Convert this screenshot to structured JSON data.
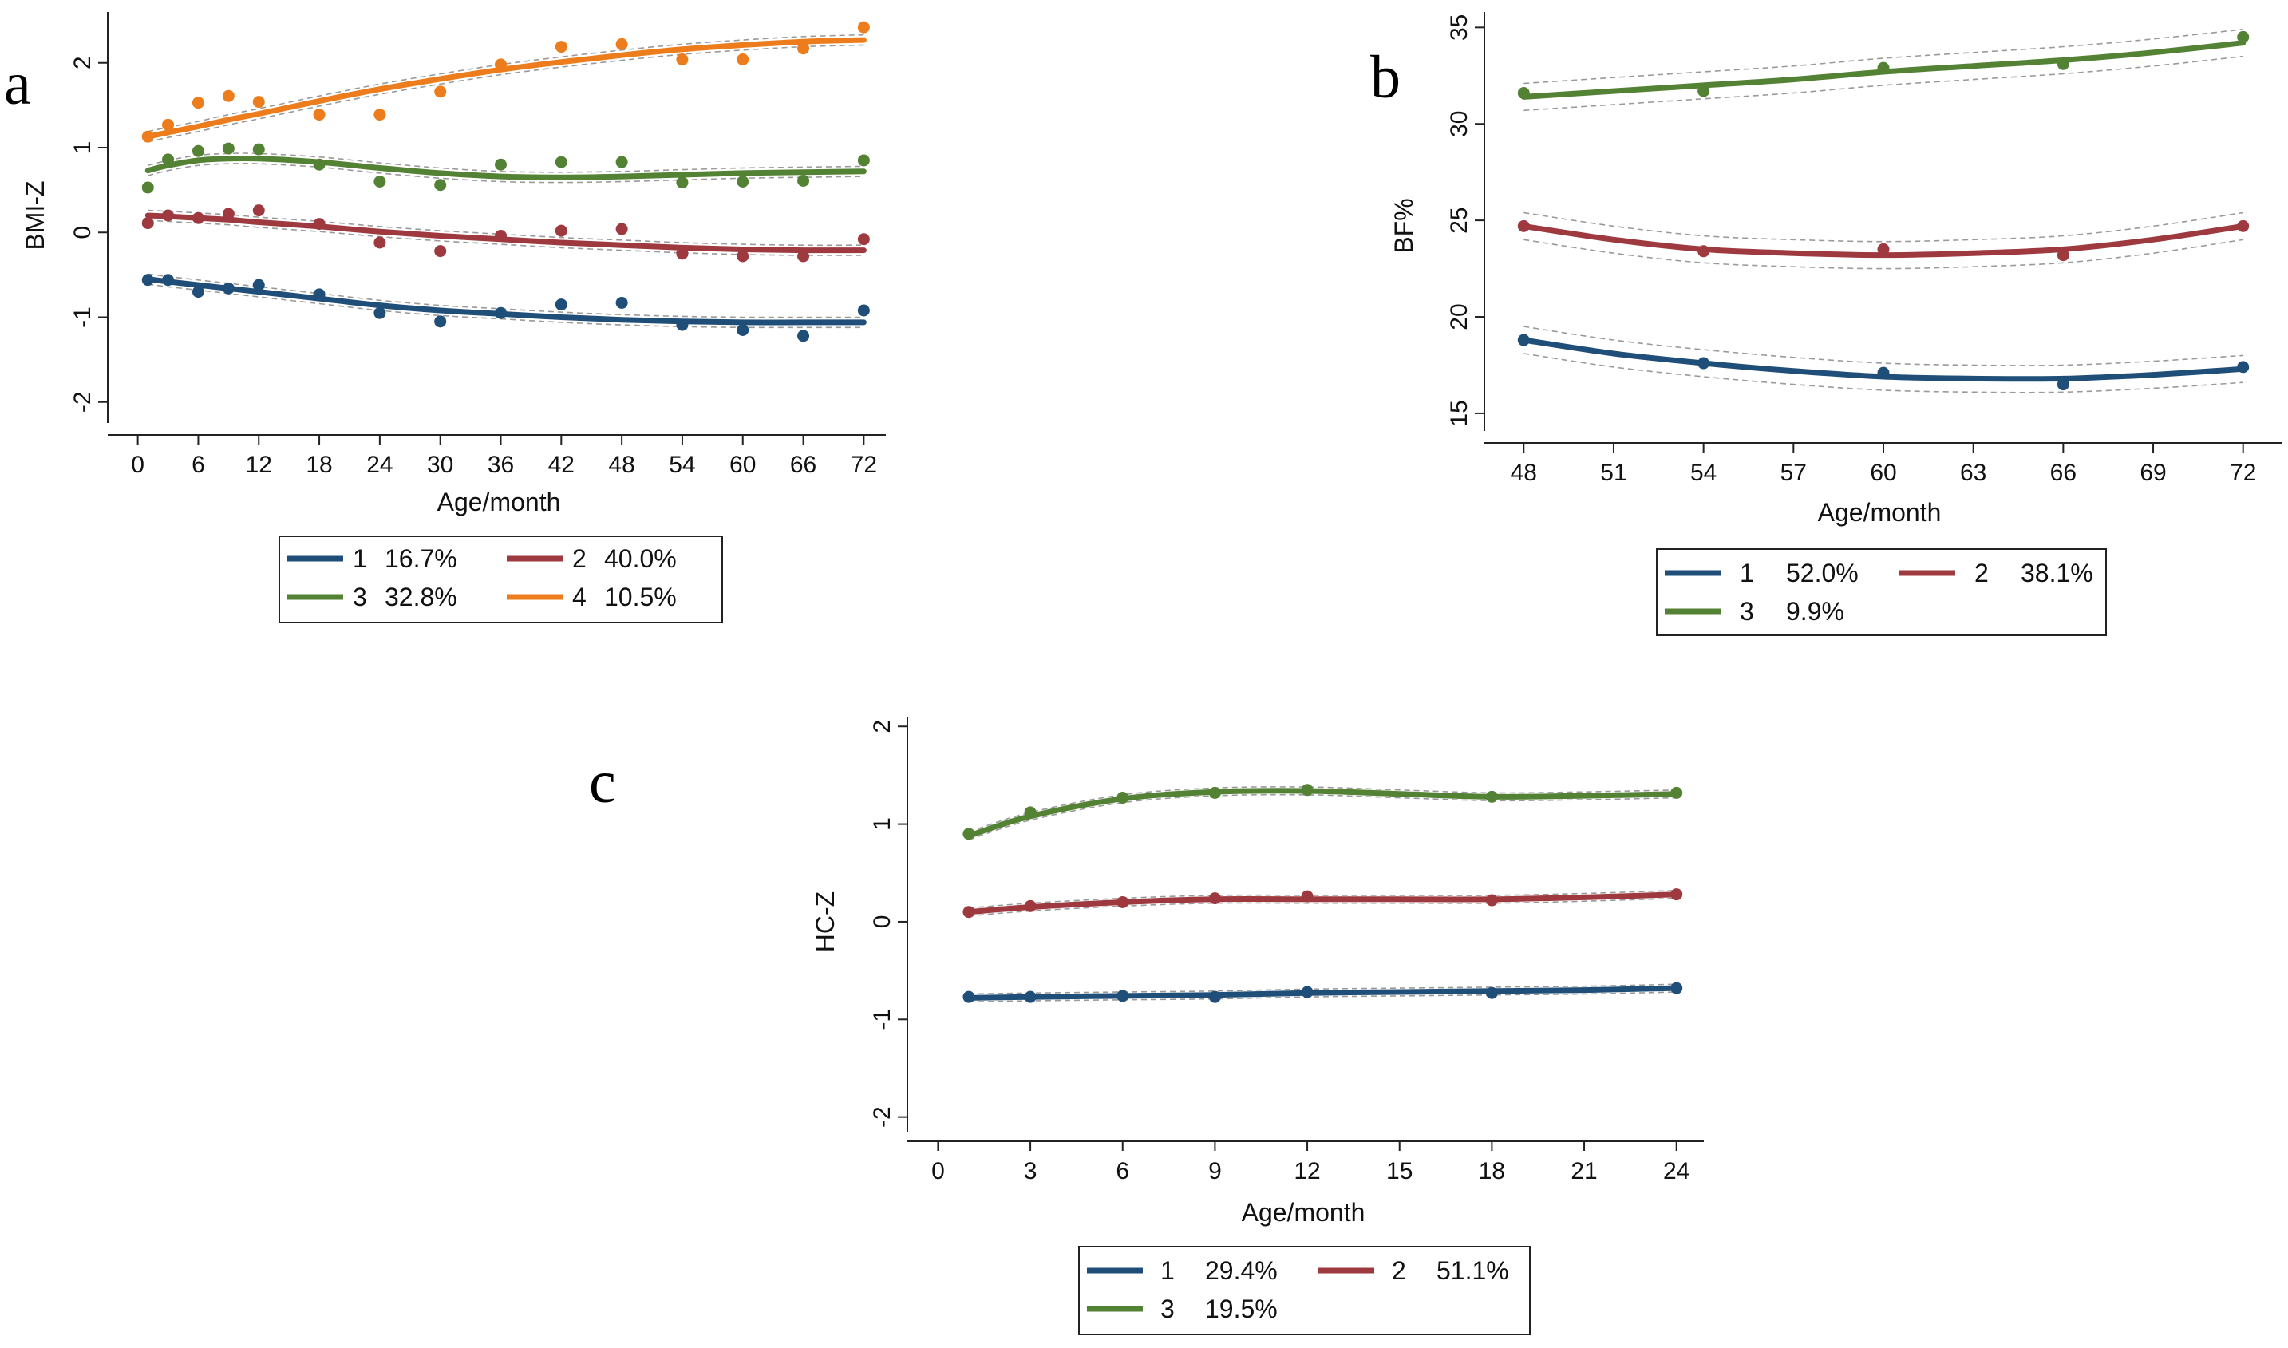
{
  "chart_data": [
    {
      "panel": "a",
      "type": "line",
      "xlabel": "Age/month",
      "ylabel": "BMI-Z",
      "xlim": [
        -1,
        73
      ],
      "ylim": [
        -2.2,
        2.6
      ],
      "xticks": [
        0,
        6,
        12,
        18,
        24,
        30,
        36,
        42,
        48,
        54,
        60,
        66,
        72
      ],
      "xtick_labels": [
        "0",
        "6",
        "12",
        "18",
        "24",
        "30",
        "36",
        "42",
        "48",
        "54",
        "60",
        "66",
        "72"
      ],
      "yticks": [
        -2,
        -1,
        0,
        1,
        2
      ],
      "ytick_labels": [
        "-2",
        "-1",
        "0",
        "1",
        "2"
      ],
      "grid": false,
      "confidence_band": "dashed gray",
      "legend_position": "bottom",
      "series": [
        {
          "name": "1",
          "pct": "16.7%",
          "color": "#1f4e79",
          "fit_x": [
            1,
            3,
            6,
            9,
            12,
            18,
            24,
            30,
            36,
            42,
            48,
            54,
            60,
            66,
            72
          ],
          "fit_y": [
            -0.55,
            -0.58,
            -0.62,
            -0.66,
            -0.7,
            -0.78,
            -0.86,
            -0.92,
            -0.96,
            -1.0,
            -1.03,
            -1.05,
            -1.06,
            -1.06,
            -1.06
          ],
          "points_x": [
            1,
            3,
            6,
            9,
            12,
            18,
            24,
            30,
            36,
            42,
            48,
            54,
            60,
            66,
            72
          ],
          "points_y": [
            -0.56,
            -0.56,
            -0.7,
            -0.66,
            -0.62,
            -0.73,
            -0.95,
            -1.05,
            -0.95,
            -0.85,
            -0.83,
            -1.09,
            -1.15,
            -1.22,
            -0.92
          ]
        },
        {
          "name": "2",
          "pct": "40.0%",
          "color": "#9e3a3f",
          "fit_x": [
            1,
            3,
            6,
            9,
            12,
            18,
            24,
            30,
            36,
            42,
            48,
            54,
            60,
            66,
            72
          ],
          "fit_y": [
            0.2,
            0.19,
            0.17,
            0.15,
            0.12,
            0.07,
            0.01,
            -0.04,
            -0.08,
            -0.12,
            -0.15,
            -0.18,
            -0.2,
            -0.21,
            -0.21
          ],
          "points_x": [
            1,
            3,
            6,
            9,
            12,
            18,
            24,
            30,
            36,
            42,
            48,
            54,
            60,
            66,
            72
          ],
          "points_y": [
            0.11,
            0.2,
            0.17,
            0.22,
            0.26,
            0.1,
            -0.12,
            -0.22,
            -0.04,
            0.02,
            0.04,
            -0.25,
            -0.28,
            -0.28,
            -0.08
          ]
        },
        {
          "name": "3",
          "pct": "32.8%",
          "color": "#548235",
          "fit_x": [
            1,
            3,
            6,
            9,
            12,
            18,
            24,
            30,
            36,
            42,
            48,
            54,
            60,
            66,
            72
          ],
          "fit_y": [
            0.73,
            0.79,
            0.85,
            0.87,
            0.87,
            0.83,
            0.76,
            0.7,
            0.66,
            0.65,
            0.66,
            0.68,
            0.7,
            0.71,
            0.72
          ],
          "points_x": [
            1,
            3,
            6,
            9,
            12,
            18,
            24,
            30,
            36,
            42,
            48,
            54,
            60,
            66,
            72
          ],
          "points_y": [
            0.53,
            0.86,
            0.96,
            0.99,
            0.98,
            0.8,
            0.6,
            0.56,
            0.8,
            0.83,
            0.83,
            0.59,
            0.6,
            0.61,
            0.85
          ]
        },
        {
          "name": "4",
          "pct": "10.5%",
          "color": "#ed7d1c",
          "fit_x": [
            1,
            3,
            6,
            9,
            12,
            18,
            24,
            30,
            36,
            42,
            48,
            54,
            60,
            66,
            72
          ],
          "fit_y": [
            1.13,
            1.18,
            1.25,
            1.33,
            1.4,
            1.55,
            1.69,
            1.81,
            1.92,
            2.01,
            2.09,
            2.16,
            2.21,
            2.25,
            2.27
          ],
          "points_x": [
            1,
            3,
            6,
            9,
            12,
            18,
            24,
            30,
            36,
            42,
            48,
            54,
            60,
            66,
            72
          ],
          "points_y": [
            1.13,
            1.27,
            1.53,
            1.61,
            1.54,
            1.39,
            1.39,
            1.66,
            1.98,
            2.19,
            2.22,
            2.04,
            2.04,
            2.17,
            2.42
          ]
        }
      ]
    },
    {
      "panel": "b",
      "type": "line",
      "xlabel": "Age/month",
      "ylabel": "BF%",
      "xlim": [
        47.3,
        72.7
      ],
      "ylim": [
        14.5,
        35.8
      ],
      "xticks": [
        48,
        51,
        54,
        57,
        60,
        63,
        66,
        69,
        72
      ],
      "xtick_labels": [
        "48",
        "51",
        "54",
        "57",
        "60",
        "63",
        "66",
        "69",
        "72"
      ],
      "yticks": [
        15,
        20,
        25,
        30,
        35
      ],
      "ytick_labels": [
        "15",
        "20",
        "25",
        "30",
        "35"
      ],
      "grid": false,
      "confidence_band": "dashed gray",
      "legend_position": "bottom",
      "series": [
        {
          "name": "1",
          "pct": "52.0%",
          "color": "#1f4e79",
          "fit_x": [
            48,
            51,
            54,
            57,
            60,
            63,
            66,
            69,
            72
          ],
          "fit_y": [
            18.8,
            18.1,
            17.6,
            17.2,
            16.9,
            16.8,
            16.8,
            17.0,
            17.3
          ],
          "points_x": [
            48,
            54,
            60,
            66,
            72
          ],
          "points_y": [
            18.8,
            17.6,
            17.1,
            16.5,
            17.4
          ]
        },
        {
          "name": "2",
          "pct": "38.1%",
          "color": "#9e3a3f",
          "fit_x": [
            48,
            51,
            54,
            57,
            60,
            63,
            66,
            69,
            72
          ],
          "fit_y": [
            24.7,
            24.0,
            23.5,
            23.3,
            23.2,
            23.3,
            23.5,
            24.0,
            24.7
          ],
          "points_x": [
            48,
            54,
            60,
            66,
            72
          ],
          "points_y": [
            24.7,
            23.4,
            23.5,
            23.2,
            24.7
          ]
        },
        {
          "name": "3",
          "pct": "9.9%",
          "color": "#548235",
          "fit_x": [
            48,
            51,
            54,
            57,
            60,
            63,
            66,
            69,
            72
          ],
          "fit_y": [
            31.4,
            31.7,
            32.0,
            32.3,
            32.7,
            33.0,
            33.3,
            33.7,
            34.2
          ],
          "points_x": [
            48,
            54,
            60,
            66,
            72
          ],
          "points_y": [
            31.6,
            31.7,
            32.9,
            33.1,
            34.5
          ]
        }
      ]
    },
    {
      "panel": "c",
      "type": "line",
      "xlabel": "Age/month",
      "ylabel": "HC-Z",
      "xlim": [
        -0.4,
        24.5
      ],
      "ylim": [
        -2.15,
        2.1
      ],
      "xticks": [
        0,
        3,
        6,
        9,
        12,
        15,
        18,
        21,
        24
      ],
      "xtick_labels": [
        "0",
        "3",
        "6",
        "9",
        "12",
        "15",
        "18",
        "21",
        "24"
      ],
      "yticks": [
        -2,
        -1,
        0,
        1,
        2
      ],
      "ytick_labels": [
        "-2",
        "-1",
        "0",
        "1",
        "2"
      ],
      "grid": false,
      "confidence_band": "dashed gray",
      "legend_position": "bottom",
      "series": [
        {
          "name": "1",
          "pct": "29.4%",
          "color": "#1f4e79",
          "fit_x": [
            1,
            3,
            6,
            9,
            12,
            15,
            18,
            21,
            24
          ],
          "fit_y": [
            -0.78,
            -0.77,
            -0.76,
            -0.75,
            -0.73,
            -0.72,
            -0.71,
            -0.7,
            -0.68
          ],
          "points_x": [
            1,
            3,
            6,
            9,
            12,
            18,
            24
          ],
          "points_y": [
            -0.77,
            -0.77,
            -0.76,
            -0.77,
            -0.72,
            -0.73,
            -0.68
          ]
        },
        {
          "name": "2",
          "pct": "51.1%",
          "color": "#9e3a3f",
          "fit_x": [
            1,
            3,
            6,
            9,
            12,
            15,
            18,
            21,
            24
          ],
          "fit_y": [
            0.1,
            0.15,
            0.2,
            0.23,
            0.23,
            0.23,
            0.23,
            0.25,
            0.28
          ],
          "points_x": [
            1,
            3,
            6,
            9,
            12,
            18,
            24
          ],
          "points_y": [
            0.1,
            0.16,
            0.2,
            0.24,
            0.26,
            0.22,
            0.28
          ]
        },
        {
          "name": "3",
          "pct": "19.5%",
          "color": "#548235",
          "fit_x": [
            1,
            3,
            6,
            9,
            12,
            15,
            18,
            21,
            24
          ],
          "fit_y": [
            0.88,
            1.08,
            1.26,
            1.33,
            1.34,
            1.31,
            1.28,
            1.29,
            1.31
          ],
          "points_x": [
            1,
            3,
            6,
            9,
            12,
            18,
            24
          ],
          "points_y": [
            0.9,
            1.12,
            1.27,
            1.32,
            1.35,
            1.28,
            1.32
          ]
        }
      ]
    }
  ]
}
